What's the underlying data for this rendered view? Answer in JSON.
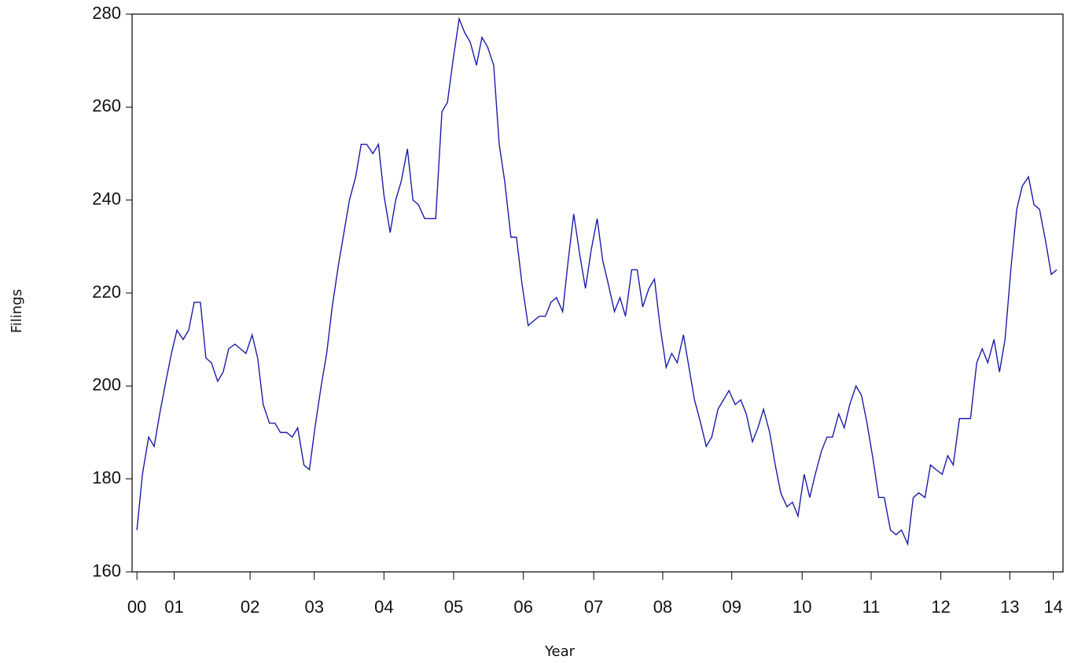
{
  "chart_data": {
    "type": "line",
    "xlabel": "Year",
    "ylabel": "Filings",
    "x": [
      2000,
      2000.08,
      2000.17,
      2000.25,
      2000.33,
      2000.42,
      2000.5,
      2000.58,
      2000.67,
      2000.75,
      2000.83,
      2000.92,
      2001,
      2001.08,
      2001.17,
      2001.25,
      2001.33,
      2001.42,
      2001.5,
      2001.58,
      2001.67,
      2001.75,
      2001.83,
      2001.92,
      2002,
      2002.08,
      2002.17,
      2002.25,
      2002.33,
      2002.42,
      2002.5,
      2002.58,
      2002.67,
      2002.75,
      2002.83,
      2002.92,
      2003,
      2003.08,
      2003.17,
      2003.25,
      2003.33,
      2003.42,
      2003.5,
      2003.58,
      2003.67,
      2003.75,
      2003.83,
      2003.92,
      2004,
      2004.08,
      2004.17,
      2004.25,
      2004.33,
      2004.42,
      2004.5,
      2004.58,
      2004.67,
      2004.75,
      2004.83,
      2004.92,
      2005,
      2005.08,
      2005.17,
      2005.25,
      2005.33,
      2005.42,
      2005.5,
      2005.58,
      2005.67,
      2005.75,
      2005.83,
      2005.92,
      2006,
      2006.08,
      2006.17,
      2006.25,
      2006.33,
      2006.42,
      2006.5,
      2006.58,
      2006.67,
      2006.75,
      2006.83,
      2006.92,
      2007,
      2007.08,
      2007.17,
      2007.25,
      2007.33,
      2007.42,
      2007.5,
      2007.58,
      2007.67,
      2007.75,
      2007.83,
      2007.92,
      2008,
      2008.08,
      2008.17,
      2008.25,
      2008.33,
      2008.42,
      2008.5,
      2008.58,
      2008.67,
      2008.75,
      2008.83,
      2008.92,
      2009,
      2009.08,
      2009.17,
      2009.25,
      2009.33,
      2009.42,
      2009.5,
      2009.58,
      2009.67,
      2009.75,
      2009.83,
      2009.92,
      2010,
      2010.08,
      2010.17,
      2010.25,
      2010.33,
      2010.42,
      2010.5,
      2010.58,
      2010.67,
      2010.75,
      2010.83,
      2010.92,
      2011,
      2011.08,
      2011.17,
      2011.25,
      2011.33,
      2011.42,
      2011.5,
      2011.58,
      2011.67,
      2011.75,
      2011.83,
      2011.92,
      2012,
      2012.08,
      2012.17,
      2012.25,
      2012.33,
      2012.42,
      2012.5,
      2012.58,
      2012.67,
      2012.75,
      2012.83,
      2012.92,
      2013,
      2013.08,
      2013.17,
      2013.25,
      2013.33
    ],
    "series": [
      {
        "color": "#1c1ca8",
        "values": [
          169,
          181,
          189,
          187,
          194,
          201,
          207,
          212,
          210,
          212,
          218,
          218,
          206,
          205,
          201,
          203,
          208,
          209,
          208,
          207,
          211,
          206,
          196,
          192,
          192,
          190,
          190,
          189,
          191,
          183,
          182,
          191,
          200,
          207,
          217,
          226,
          233,
          240,
          245,
          252,
          252,
          250,
          252,
          241,
          233,
          240,
          244,
          251,
          240,
          239,
          236,
          236,
          236,
          259,
          261,
          270,
          279,
          276,
          274,
          269,
          275,
          273,
          269,
          252,
          244,
          232,
          232,
          222,
          213,
          214,
          215,
          215,
          218,
          219,
          216,
          227,
          237,
          228,
          221,
          229,
          236,
          227,
          222,
          216,
          219,
          215,
          225,
          225,
          217,
          221,
          223,
          213,
          204,
          207,
          205,
          211,
          204,
          197,
          192,
          187,
          189,
          195,
          197,
          199,
          196,
          197,
          194,
          188,
          191,
          195,
          190,
          183,
          177,
          174,
          175,
          172,
          181,
          176,
          181,
          186,
          189,
          189,
          194,
          191,
          196,
          200,
          198,
          192,
          184,
          176,
          176,
          169,
          168,
          169,
          166,
          176,
          177,
          176,
          183,
          182,
          181,
          185,
          183,
          193,
          193,
          193,
          205,
          208,
          205,
          210,
          203,
          210,
          226,
          238,
          243,
          245,
          239,
          238,
          231,
          224,
          225
        ]
      }
    ],
    "xlim": [
      1999.93,
      2013.42
    ],
    "xticks": [
      {
        "value": 2000,
        "label": "00"
      },
      {
        "value": 2000.54,
        "label": "01"
      },
      {
        "value": 2001.64,
        "label": "02"
      },
      {
        "value": 2002.57,
        "label": "03"
      },
      {
        "value": 2003.58,
        "label": "04"
      },
      {
        "value": 2004.59,
        "label": "05"
      },
      {
        "value": 2005.6,
        "label": "06"
      },
      {
        "value": 2006.62,
        "label": "07"
      },
      {
        "value": 2007.62,
        "label": "08"
      },
      {
        "value": 2008.62,
        "label": "09"
      },
      {
        "value": 2009.64,
        "label": "10"
      },
      {
        "value": 2010.64,
        "label": "11"
      },
      {
        "value": 2011.65,
        "label": "12"
      },
      {
        "value": 2012.65,
        "label": "13"
      },
      {
        "value": 2013.28,
        "label": "14"
      }
    ],
    "ylim": [
      160,
      280
    ],
    "yticks": [
      160,
      180,
      200,
      220,
      240,
      260,
      280
    ]
  }
}
